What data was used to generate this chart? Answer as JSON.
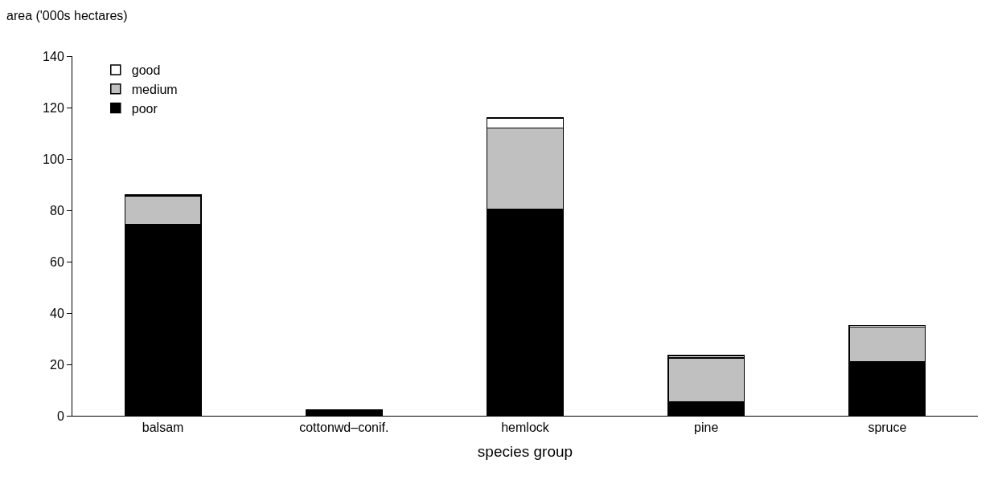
{
  "chart_data": {
    "type": "bar",
    "stacked": true,
    "ylabel": "area ('000s hectares)",
    "xlabel": "species group",
    "categories": [
      "balsam",
      "cottonwd–conif.",
      "hemlock",
      "pine",
      "spruce"
    ],
    "series": [
      {
        "name": "poor",
        "color": "#000000",
        "values": [
          74.5,
          2.3,
          80.5,
          5.5,
          21
        ]
      },
      {
        "name": "medium",
        "color": "#c0c0c0",
        "values": [
          11,
          null,
          31.5,
          17,
          13.5
        ]
      },
      {
        "name": "good",
        "color": "#ffffff",
        "values": [
          0.5,
          null,
          4,
          1,
          0.7
        ]
      }
    ],
    "ylim": [
      0,
      140
    ],
    "yticks": [
      0,
      20,
      40,
      60,
      80,
      100,
      120,
      140
    ],
    "legend": "top left"
  }
}
